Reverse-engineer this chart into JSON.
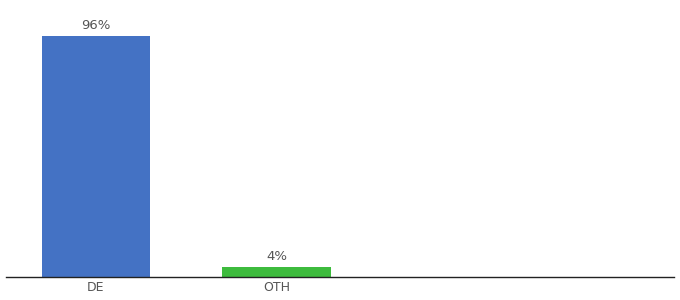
{
  "categories": [
    "DE",
    "OTH"
  ],
  "values": [
    96,
    4
  ],
  "bar_colors": [
    "#4472c4",
    "#3dbb3d"
  ],
  "label_texts": [
    "96%",
    "4%"
  ],
  "ylim": [
    0,
    108
  ],
  "background_color": "#ffffff",
  "label_fontsize": 9.5,
  "tick_fontsize": 9,
  "bar_width": 0.6,
  "x_positions": [
    0,
    1
  ],
  "xlim": [
    -0.5,
    3.2
  ]
}
